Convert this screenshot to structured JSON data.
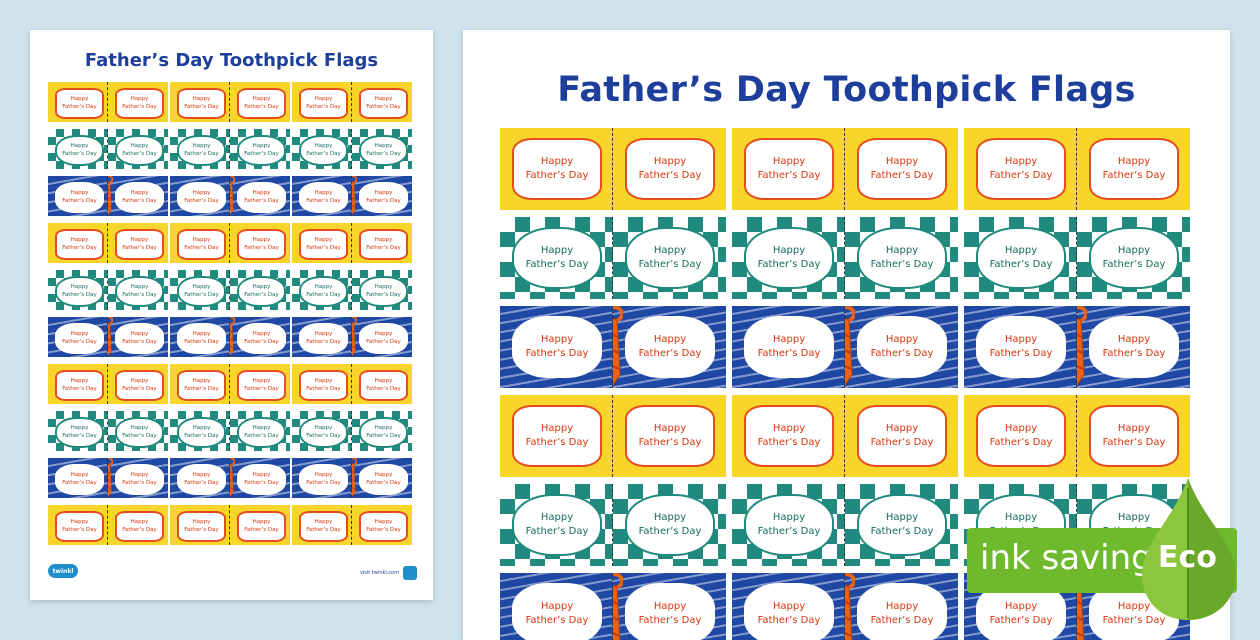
{
  "document": {
    "title": "Father’s Day Toothpick Flags",
    "flag_line1": "Happy",
    "flag_line2": "Father’s Day",
    "row_pattern": [
      "yellow",
      "green",
      "blue",
      "yellow",
      "green",
      "blue",
      "yellow",
      "green",
      "blue",
      "yellow"
    ],
    "footer_logo": "twinkl",
    "footer_url": "visit twinkl.com"
  },
  "preview_large": {
    "row_pattern": [
      "yellow",
      "green",
      "blue",
      "yellow",
      "green",
      "blue"
    ]
  },
  "badge": {
    "text": "ink saving",
    "eco_label": "Eco"
  },
  "colors": {
    "background": "#cfe3ee",
    "title": "#1d3e9a",
    "yellow": "#f7d52a",
    "green": "#1f8a7d",
    "blue": "#1f47a4",
    "red_text": "#d8360c",
    "eco_green": "#6fb92c"
  }
}
